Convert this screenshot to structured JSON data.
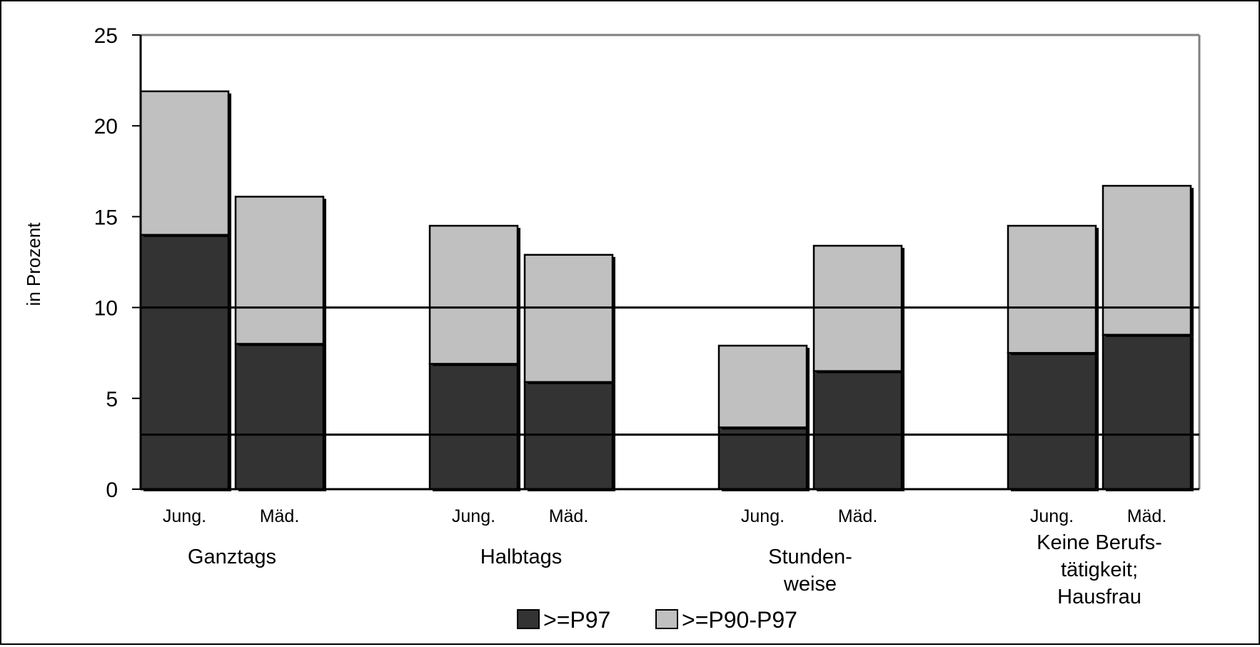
{
  "colors": {
    "p97": "#333333",
    "p90_97": "#c0c0c0",
    "reference_line": "#000000",
    "axis": "#000000",
    "plot_border": "#808080"
  },
  "chart_data": {
    "type": "bar",
    "stacked": true,
    "title": "",
    "xlabel": "",
    "ylabel": "in Prozent",
    "ylim": [
      0,
      25
    ],
    "yticks": [
      "0",
      "5",
      "10",
      "15",
      "20",
      "25"
    ],
    "grid": false,
    "legend": {
      "placement": "bottom-center",
      "entries": [
        ">=P97",
        ">=P90-P97"
      ]
    },
    "reference_lines": [
      10,
      3
    ],
    "groups": [
      {
        "label": "Ganztags",
        "categories": [
          "Jung.",
          "Mäd."
        ]
      },
      {
        "label": "Halbtags",
        "categories": [
          "Jung.",
          "Mäd."
        ]
      },
      {
        "label": "Stunden-\nweise",
        "categories": [
          "Jung.",
          "Mäd."
        ]
      },
      {
        "label": "Keine Berufs-\ntätigkeit;\nHausfrau",
        "categories": [
          "Jung.",
          "Mäd."
        ]
      }
    ],
    "series": [
      {
        "name": ">=P97",
        "values": [
          14.0,
          8.0,
          6.9,
          5.9,
          3.4,
          6.5,
          7.5,
          8.5
        ]
      },
      {
        "name": ">=P90-P97",
        "values": [
          7.9,
          8.1,
          7.6,
          7.0,
          4.5,
          6.9,
          7.0,
          8.2
        ]
      }
    ]
  }
}
